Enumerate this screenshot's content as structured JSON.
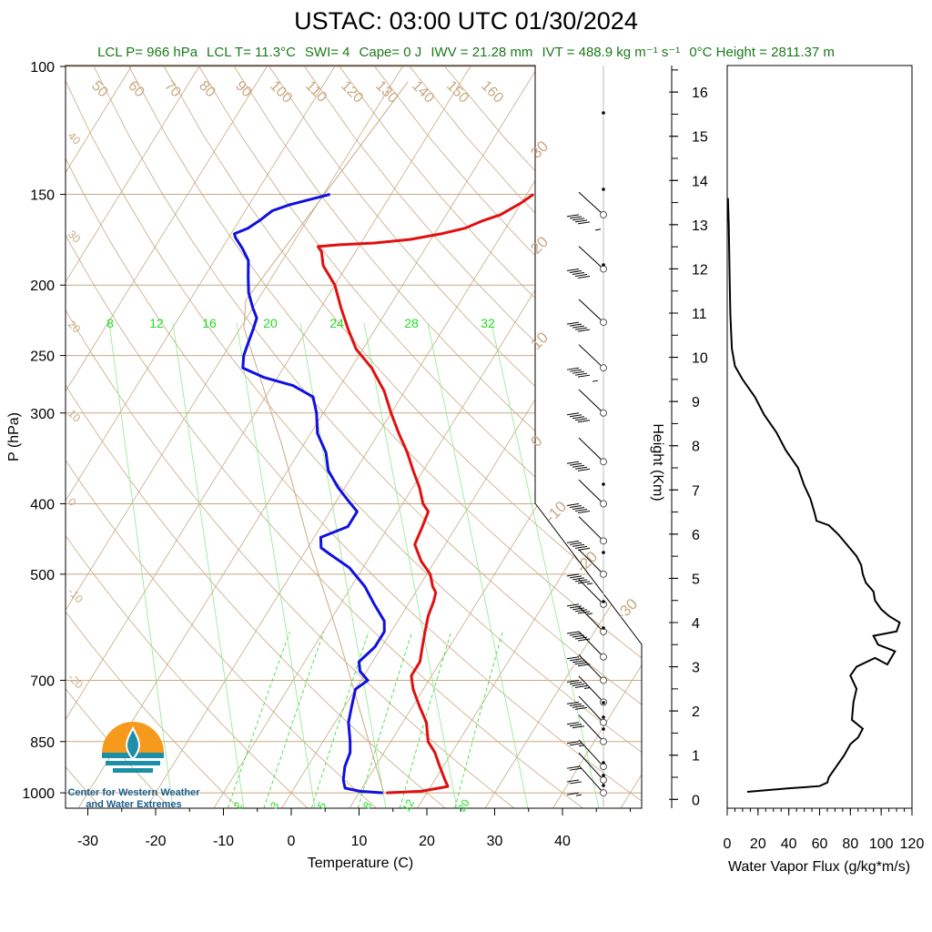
{
  "title": "USTAC: 03:00 UTC 01/30/2024",
  "stats": [
    "LCL P= 966 hPa",
    "LCL T= 11.3°C",
    "SWI= 4",
    "Cape= 0 J",
    "IWV = 21.28 mm",
    "IVT = 488.9 kg m⁻¹ s⁻¹",
    "0°C Height = 2811.37 m"
  ],
  "logo": {
    "line1": "Center for Western Weather",
    "line2": "and Water Extremes"
  },
  "colors": {
    "temperature": "#e01010",
    "dewpoint": "#1010e0",
    "dry_adiabat": "#c8a882",
    "isotherm": "#c8a882",
    "mixing_ratio": "#22dd22",
    "stats_text": "#1a7a1a"
  },
  "chart_data": [
    {
      "type": "line",
      "name": "skew-t",
      "xlabel": "Temperature (C)",
      "ylabel": "P (hPa)",
      "xlim": [
        -35,
        50
      ],
      "ylim": [
        1050,
        100
      ],
      "y_scale": "log",
      "x_ticks": [
        -30,
        -20,
        -10,
        0,
        10,
        20,
        30,
        40
      ],
      "y_ticks": [
        100,
        150,
        200,
        250,
        300,
        400,
        500,
        700,
        850,
        1000
      ],
      "isotherm_labels": [
        "50",
        "60",
        "70",
        "80",
        "90",
        "100",
        "110",
        "120",
        "130",
        "140",
        "150",
        "160"
      ],
      "dry_adiabat_labels": [
        "40",
        "30",
        "20",
        "10",
        "0",
        "-10",
        "-20"
      ],
      "right_labels": [
        "30",
        "20",
        "10",
        "0",
        "-10",
        "-20",
        "-30"
      ],
      "mixing_ratio_top_labels": [
        "8",
        "12",
        "16",
        "20",
        "24",
        "28",
        "32"
      ],
      "mixing_ratio_bottom_labels": [
        "2",
        "3",
        "5",
        "8",
        "12",
        "20"
      ],
      "series": [
        {
          "name": "temperature",
          "points": [
            [
              14,
              1000
            ],
            [
              19,
              995
            ],
            [
              22.5,
              980
            ],
            [
              21.5,
              960
            ],
            [
              19.5,
              920
            ],
            [
              17.5,
              880
            ],
            [
              15.5,
              850
            ],
            [
              13.5,
              800
            ],
            [
              11,
              760
            ],
            [
              8.5,
              720
            ],
            [
              7,
              690
            ],
            [
              7,
              660
            ],
            [
              6,
              630
            ],
            [
              5,
              600
            ],
            [
              4,
              570
            ],
            [
              3.5,
              545
            ],
            [
              3,
              530
            ],
            [
              2,
              520
            ],
            [
              0.5,
              500
            ],
            [
              -2,
              480
            ],
            [
              -4.5,
              455
            ],
            [
              -5,
              430
            ],
            [
              -5.5,
              410
            ],
            [
              -7,
              400
            ],
            [
              -9,
              380
            ],
            [
              -11.5,
              360
            ],
            [
              -14,
              340
            ],
            [
              -17,
              320
            ],
            [
              -20,
              300
            ],
            [
              -23,
              280
            ],
            [
              -27,
              260
            ],
            [
              -31,
              245
            ],
            [
              -34,
              230
            ],
            [
              -37,
              215
            ],
            [
              -40,
              200
            ],
            [
              -43.5,
              188
            ],
            [
              -45,
              180
            ],
            [
              -46,
              177
            ],
            [
              -43,
              176
            ],
            [
              -38,
              175
            ],
            [
              -33,
              173
            ],
            [
              -29,
              170
            ],
            [
              -26,
              167
            ],
            [
              -24,
              163
            ],
            [
              -22,
              160
            ],
            [
              -21,
              157
            ],
            [
              -20,
              154
            ],
            [
              -19,
              150
            ]
          ]
        },
        {
          "name": "dewpoint",
          "points": [
            [
              13.5,
              1000
            ],
            [
              10,
              995
            ],
            [
              7.5,
              985
            ],
            [
              6.5,
              960
            ],
            [
              5.5,
              920
            ],
            [
              5,
              880
            ],
            [
              4,
              850
            ],
            [
              2,
              800
            ],
            [
              1,
              760
            ],
            [
              0,
              720
            ],
            [
              1,
              700
            ],
            [
              -1,
              680
            ],
            [
              -2,
              660
            ],
            [
              -1,
              630
            ],
            [
              -1,
              600
            ],
            [
              -2,
              580
            ],
            [
              -5,
              550
            ],
            [
              -8,
              520
            ],
            [
              -12,
              490
            ],
            [
              -16,
              470
            ],
            [
              -18,
              460
            ],
            [
              -19,
              445
            ],
            [
              -16,
              430
            ],
            [
              -16,
              410
            ],
            [
              -18.5,
              395
            ],
            [
              -21,
              380
            ],
            [
              -24,
              360
            ],
            [
              -26,
              340
            ],
            [
              -29,
              320
            ],
            [
              -31,
              300
            ],
            [
              -33,
              285
            ],
            [
              -37,
              275
            ],
            [
              -42,
              268
            ],
            [
              -46,
              260
            ],
            [
              -47,
              250
            ],
            [
              -47.5,
              240
            ],
            [
              -48,
              230
            ],
            [
              -48.5,
              222
            ],
            [
              -50,
              215
            ],
            [
              -52,
              205
            ],
            [
              -53.5,
              195
            ],
            [
              -55,
              185
            ],
            [
              -57,
              178
            ],
            [
              -59,
              172
            ],
            [
              -59.5,
              170
            ],
            [
              -58,
              167
            ],
            [
              -57,
              163
            ],
            [
              -56,
              158
            ],
            [
              -54,
              155
            ],
            [
              -51,
              152
            ],
            [
              -49,
              150
            ]
          ]
        }
      ],
      "wind_barbs": [
        {
          "pressure": 1000,
          "speed_kt": 15
        },
        {
          "pressure": 960,
          "speed_kt": 20
        },
        {
          "pressure": 920,
          "speed_kt": 20
        },
        {
          "pressure": 850,
          "speed_kt": 25
        },
        {
          "pressure": 800,
          "speed_kt": 30
        },
        {
          "pressure": 750,
          "speed_kt": 40
        },
        {
          "pressure": 700,
          "speed_kt": 45
        },
        {
          "pressure": 650,
          "speed_kt": 50
        },
        {
          "pressure": 600,
          "speed_kt": 50
        },
        {
          "pressure": 550,
          "speed_kt": 55
        },
        {
          "pressure": 500,
          "speed_kt": 55
        },
        {
          "pressure": 450,
          "speed_kt": 60
        },
        {
          "pressure": 400,
          "speed_kt": 60
        },
        {
          "pressure": 350,
          "speed_kt": 70
        },
        {
          "pressure": 300,
          "speed_kt": 70
        },
        {
          "pressure": 260,
          "speed_kt": 75
        },
        {
          "pressure": 225,
          "speed_kt": 80
        },
        {
          "pressure": 190,
          "speed_kt": 80
        },
        {
          "pressure": 160,
          "speed_kt": 85
        }
      ]
    },
    {
      "type": "line",
      "name": "water-vapor-flux",
      "xlabel": "Water Vapor Flux (g/kg*m/s)",
      "ylabel": "Height (Km)",
      "xlim": [
        0,
        120
      ],
      "ylim": [
        -0.2,
        16.6
      ],
      "x_ticks": [
        0,
        20,
        40,
        60,
        80,
        100,
        120
      ],
      "y_ticks": [
        0,
        1,
        2,
        3,
        4,
        5,
        6,
        7,
        8,
        9,
        10,
        11,
        12,
        13,
        14,
        15,
        16
      ],
      "series": [
        {
          "name": "flux",
          "points": [
            [
              13,
              0.17
            ],
            [
              40,
              0.25
            ],
            [
              60,
              0.3
            ],
            [
              65,
              0.38
            ],
            [
              66,
              0.5
            ],
            [
              70,
              0.7
            ],
            [
              76,
              1.0
            ],
            [
              80,
              1.25
            ],
            [
              85,
              1.4
            ],
            [
              88,
              1.6
            ],
            [
              81,
              1.8
            ],
            [
              82,
              2.2
            ],
            [
              84,
              2.5
            ],
            [
              80,
              2.8
            ],
            [
              84,
              3.0
            ],
            [
              96,
              3.2
            ],
            [
              104,
              3.05
            ],
            [
              109,
              3.35
            ],
            [
              98,
              3.5
            ],
            [
              95,
              3.7
            ],
            [
              110,
              3.8
            ],
            [
              112,
              4.0
            ],
            [
              105,
              4.15
            ],
            [
              100,
              4.3
            ],
            [
              96,
              4.5
            ],
            [
              95,
              4.7
            ],
            [
              90,
              4.9
            ],
            [
              88,
              5.1
            ],
            [
              87,
              5.3
            ],
            [
              84,
              5.5
            ],
            [
              78,
              5.75
            ],
            [
              72,
              6.0
            ],
            [
              66,
              6.2
            ],
            [
              58,
              6.3
            ],
            [
              57,
              6.45
            ],
            [
              54,
              6.8
            ],
            [
              50,
              7.1
            ],
            [
              46,
              7.5
            ],
            [
              38,
              7.9
            ],
            [
              32,
              8.3
            ],
            [
              24,
              8.7
            ],
            [
              18,
              9.1
            ],
            [
              10,
              9.5
            ],
            [
              5,
              9.8
            ],
            [
              3,
              10.2
            ],
            [
              2,
              11
            ],
            [
              1.5,
              12
            ],
            [
              1,
              13
            ],
            [
              0.5,
              13.6
            ]
          ]
        }
      ]
    }
  ]
}
